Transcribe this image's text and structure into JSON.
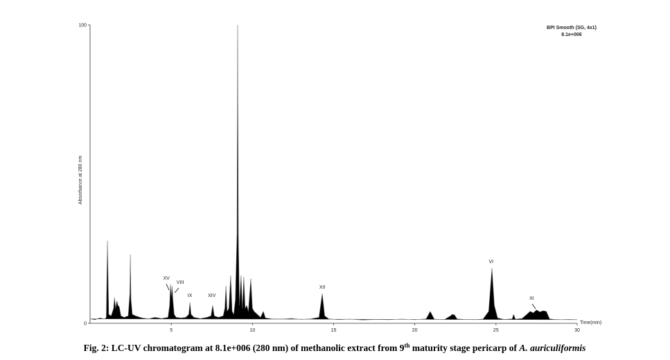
{
  "chart_data": {
    "type": "area",
    "annotation_lines": [
      "BPI Smooth (SG, 4x1)",
      "8.1e+006"
    ],
    "y_label": "Absorbance at 280 nm",
    "x_label": "Time(min)",
    "xlim": [
      0,
      30
    ],
    "xticks": [
      5,
      10,
      15,
      20,
      25,
      30
    ],
    "ylim": [
      0,
      100
    ],
    "yticks": [
      0,
      100
    ],
    "color": "#000000",
    "line_color": "#666666",
    "x": [
      0,
      0.3,
      0.6,
      0.9,
      1.0,
      1.07,
      1.15,
      1.3,
      1.45,
      1.5,
      1.58,
      1.65,
      1.72,
      1.8,
      1.9,
      2.1,
      2.35,
      2.45,
      2.48,
      2.52,
      2.6,
      2.8,
      3.2,
      3.6,
      4.0,
      4.4,
      4.8,
      4.9,
      4.95,
      5.0,
      5.05,
      5.1,
      5.18,
      5.3,
      5.6,
      5.9,
      6.08,
      6.15,
      6.22,
      6.4,
      6.8,
      7.2,
      7.45,
      7.55,
      7.65,
      7.9,
      8.2,
      8.3,
      8.37,
      8.44,
      8.55,
      8.66,
      8.75,
      8.85,
      8.95,
      9.05,
      9.09,
      9.13,
      9.2,
      9.3,
      9.38,
      9.47,
      9.55,
      9.65,
      9.75,
      9.9,
      10.0,
      10.1,
      10.3,
      10.5,
      10.67,
      10.8,
      11.2,
      11.8,
      12.4,
      13.0,
      13.6,
      14.1,
      14.3,
      14.45,
      14.7,
      15.3,
      16.0,
      16.8,
      17.6,
      18.4,
      19.2,
      20.0,
      20.7,
      20.95,
      21.2,
      21.8,
      22.2,
      22.3,
      22.45,
      22.6,
      23.0,
      23.6,
      24.2,
      24.55,
      24.75,
      24.9,
      25.1,
      25.5,
      26.0,
      26.08,
      26.2,
      26.6,
      26.9,
      27.1,
      27.3,
      27.5,
      27.7,
      27.9,
      28.1,
      28.3,
      28.6,
      29.0,
      29.5,
      30.0
    ],
    "values": [
      1.5,
      1.2,
      1.8,
      1.4,
      2,
      27.6,
      3,
      2.5,
      5,
      8.6,
      5,
      7.5,
      6,
      5.5,
      2.5,
      2,
      2.5,
      10,
      23,
      8,
      3,
      2.5,
      1.8,
      1.5,
      2,
      1.6,
      2,
      6,
      13,
      9,
      12.5,
      8,
      3,
      2,
      1.8,
      2,
      3,
      7,
      3,
      2,
      1.6,
      2,
      2.5,
      6,
      2.5,
      2,
      2.5,
      5,
      12.5,
      4,
      5,
      16,
      4,
      3,
      8,
      30,
      100,
      30,
      6,
      16,
      5,
      15.5,
      5,
      6,
      4,
      15,
      5,
      4,
      3,
      2,
      4,
      1.8,
      1.5,
      1.4,
      1.6,
      1.3,
      1.5,
      2,
      10,
      2.5,
      1.5,
      1.2,
      1.4,
      1.1,
      1.3,
      1.2,
      1.4,
      1.2,
      1.5,
      4,
      1.4,
      1.2,
      2.5,
      3,
      2.8,
      1.5,
      1.3,
      1.2,
      1.4,
      4,
      18.5,
      6,
      1.8,
      1.3,
      1.5,
      3,
      1.4,
      1.6,
      3,
      4,
      3.5,
      4.5,
      3.8,
      4.2,
      4,
      1.5,
      1.3,
      1.2,
      1.3,
      1.2
    ],
    "peak_labels": [
      {
        "text": "XV",
        "x": 4.7,
        "y": 14.6
      },
      {
        "text": "VIII",
        "x": 5.55,
        "y": 13.2
      },
      {
        "text": "IX",
        "x": 6.15,
        "y": 8.8
      },
      {
        "text": "XIV",
        "x": 7.5,
        "y": 8.8
      },
      {
        "text": "XII",
        "x": 14.3,
        "y": 11.6
      },
      {
        "text": "VI",
        "x": 24.7,
        "y": 20.2
      },
      {
        "text": "XI",
        "x": 27.2,
        "y": 7.9
      }
    ]
  },
  "caption": {
    "text": "Fig. 2: LC-UV chromatogram at 8.1e+006 (280 nm) of methanolic extract from 9",
    "superscript": "th",
    "text2": " maturity stage pericarp of ",
    "italic": "A. auriculiformis"
  }
}
